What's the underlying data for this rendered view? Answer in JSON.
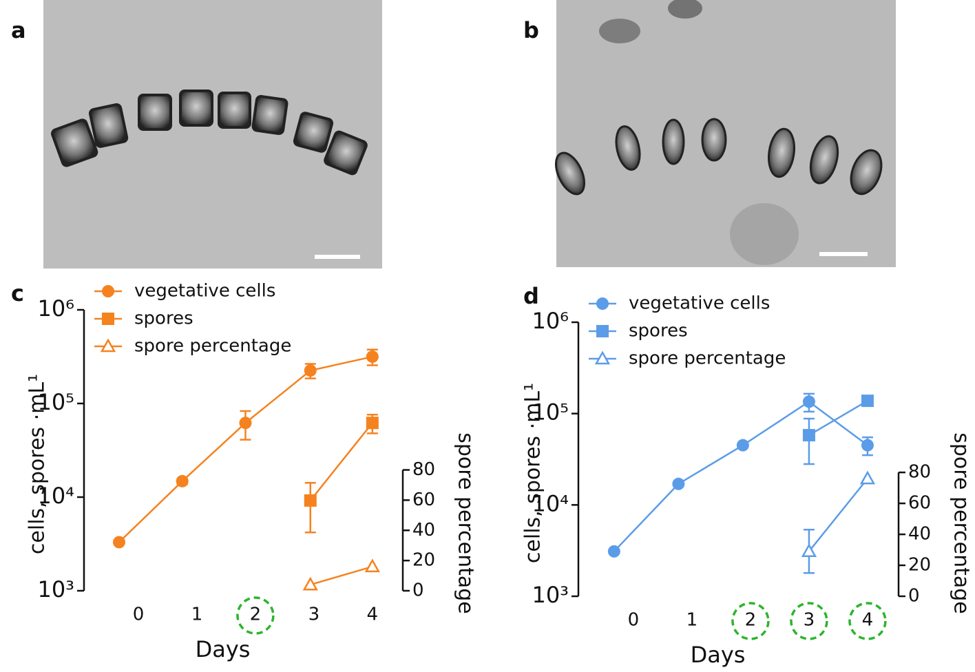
{
  "panel_labels": [
    "a",
    "b",
    "c",
    "d"
  ],
  "chart_data": [
    {
      "type": "line",
      "ylabel": "cells, spores ·mL¹",
      "y2label": "spore percentage",
      "xlabel": "Days",
      "ylog": true,
      "ylim": [
        1000,
        1000000
      ],
      "yticks": [
        {
          "value": 1000,
          "label": "10³"
        },
        {
          "value": 10000,
          "label": "10⁴"
        },
        {
          "value": 100000,
          "label": "10⁵"
        },
        {
          "value": 1000000,
          "label": "10⁶"
        }
      ],
      "y2lim": [
        0,
        186
      ],
      "y2ticks": [
        0,
        20,
        40,
        60,
        80
      ],
      "xlim": [
        -0.93,
        4.52
      ],
      "xticks": [
        0,
        1,
        2,
        3,
        4
      ],
      "highlight_x": [
        2
      ],
      "x": [
        -0.33,
        0.75,
        1.83,
        2.94,
        4
      ],
      "series": [
        {
          "name": "vegetative cells",
          "color": "#f5821f",
          "marker": "circle",
          "values": [
            3300,
            14800,
            62000,
            225000,
            316000
          ],
          "errors": [
            null,
            1000,
            21000,
            40000,
            60000
          ]
        },
        {
          "name": "spores",
          "color": "#f5821f",
          "marker": "square",
          "values": [
            null,
            null,
            null,
            9200,
            62000
          ],
          "errors": [
            null,
            null,
            null,
            5000,
            14000
          ]
        },
        {
          "name": "spore percentage",
          "color": "#f5821f",
          "marker": "triangle-open",
          "axis": "y2",
          "values": [
            null,
            null,
            null,
            4,
            16
          ],
          "errors": [
            null,
            null,
            null,
            null,
            null
          ]
        }
      ]
    },
    {
      "type": "line",
      "ylabel": "cells, spores ·mL¹",
      "y2label": "spore percentage",
      "xlabel": "Days",
      "ylog": true,
      "ylim": [
        1000,
        1000000
      ],
      "yticks": [
        {
          "value": 1000,
          "label": "10³"
        },
        {
          "value": 10000,
          "label": "10⁴"
        },
        {
          "value": 100000,
          "label": "10⁵"
        },
        {
          "value": 1000000,
          "label": "10⁶"
        }
      ],
      "y2lim": [
        0,
        177
      ],
      "y2ticks": [
        0,
        20,
        40,
        60,
        80
      ],
      "xlim": [
        -0.94,
        4.53
      ],
      "xticks": [
        0,
        1,
        2,
        3,
        4
      ],
      "highlight_x": [
        2,
        3,
        4
      ],
      "x": [
        -0.33,
        0.77,
        1.87,
        3,
        4
      ],
      "series": [
        {
          "name": "vegetative cells",
          "color": "#5b9ce8",
          "marker": "circle",
          "values": [
            3100,
            17000,
            45000,
            135000,
            45000
          ],
          "errors": [
            null,
            null,
            null,
            30000,
            10000
          ]
        },
        {
          "name": "spores",
          "color": "#5b9ce8",
          "marker": "square",
          "values": [
            null,
            null,
            null,
            58000,
            138000
          ],
          "errors": [
            null,
            null,
            null,
            30000,
            null
          ]
        },
        {
          "name": "spore percentage",
          "color": "#5b9ce8",
          "marker": "triangle-open",
          "axis": "y2",
          "values": [
            null,
            null,
            null,
            29,
            76
          ],
          "errors": [
            null,
            null,
            null,
            14,
            null
          ]
        }
      ]
    }
  ]
}
